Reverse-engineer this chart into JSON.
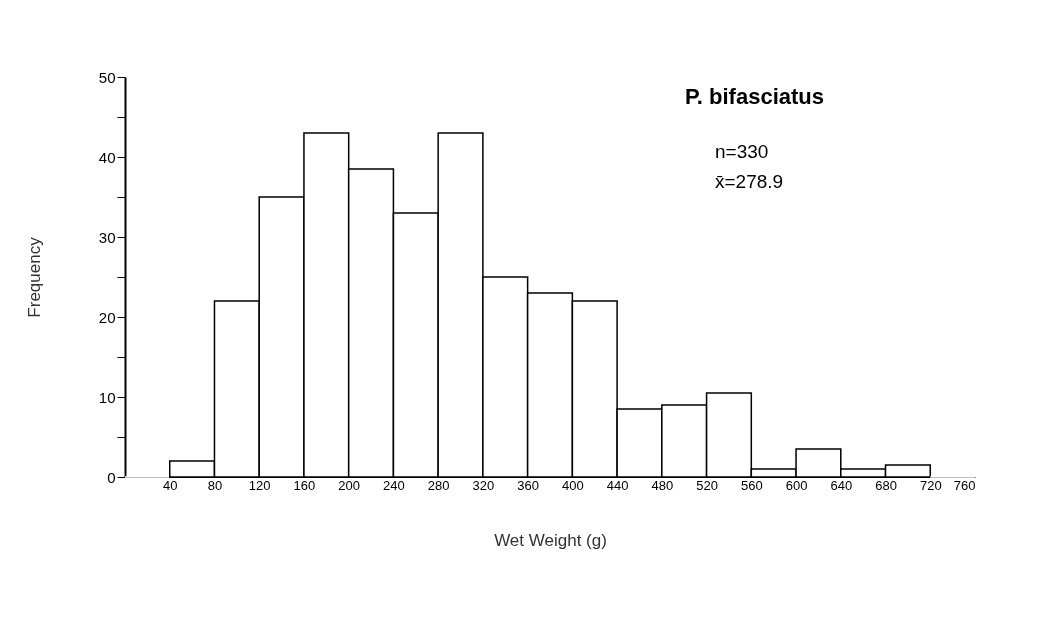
{
  "chart_data": {
    "type": "histogram",
    "title": "P. bifasciatus",
    "xlabel": "Wet Weight (g)",
    "ylabel": "Frequency",
    "bins": [
      0,
      40,
      80,
      120,
      160,
      200,
      240,
      280,
      320,
      360,
      400,
      440,
      480,
      520,
      560,
      600,
      640,
      680,
      720,
      760
    ],
    "values": [
      0,
      2,
      22,
      35,
      43,
      38.5,
      33,
      43,
      25,
      23,
      22,
      8.5,
      9,
      10.5,
      1,
      3.5,
      1,
      1.5,
      0
    ],
    "color": "#ffffff",
    "annotations": [
      "n=330",
      "x̄=278.9"
    ],
    "xlim": [
      0,
      760
    ],
    "xticks": [
      40,
      80,
      120,
      160,
      200,
      240,
      280,
      320,
      360,
      400,
      440,
      480,
      520,
      560,
      600,
      640,
      680,
      720,
      760
    ],
    "ylim": [
      0,
      50
    ],
    "yticks": [
      0,
      {
        "value": 5,
        "label": null
      },
      10,
      {
        "value": 15,
        "label": null
      },
      20,
      {
        "value": 25,
        "label": null
      },
      30,
      {
        "value": 35,
        "label": null
      },
      40,
      {
        "value": 45,
        "label": null
      },
      50
    ],
    "grid": false
  }
}
